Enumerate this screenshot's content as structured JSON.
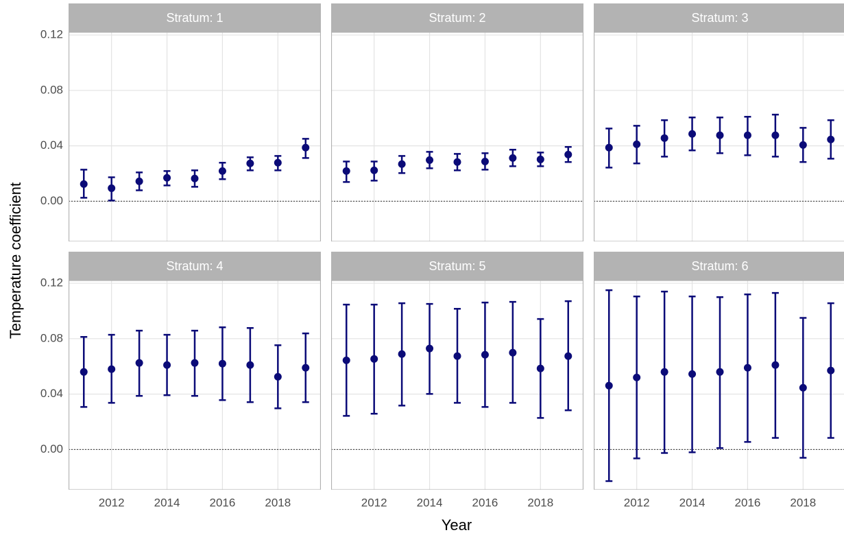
{
  "xlabel": "Year",
  "ylabel": "Temperature coefficient",
  "chart_data": [
    {
      "type": "errorbar",
      "title": "Stratum: 1",
      "color": "#0b0b78",
      "x": [
        2011,
        2012,
        2013,
        2014,
        2015,
        2016,
        2017,
        2018,
        2019
      ],
      "values": [
        0.0124,
        0.0094,
        0.0144,
        0.0169,
        0.0164,
        0.0218,
        0.0273,
        0.0278,
        0.0387
      ],
      "lower": [
        0.0025,
        0.0005,
        0.0079,
        0.0114,
        0.0104,
        0.0159,
        0.0223,
        0.0223,
        0.0312
      ],
      "upper": [
        0.0228,
        0.0173,
        0.0208,
        0.0218,
        0.0223,
        0.0278,
        0.0317,
        0.0327,
        0.0451
      ],
      "xlim": [
        2010.45,
        2019.55
      ],
      "ylim": [
        -0.029,
        0.122
      ],
      "xticks": [
        2012,
        2014,
        2016,
        2018
      ],
      "yticks": [
        {
          "value": 0,
          "label": "0.00"
        },
        0.04,
        0.08,
        0.12
      ],
      "hline": 0,
      "grid": true
    },
    {
      "type": "errorbar",
      "title": "Stratum: 2",
      "color": "#0b0b78",
      "x": [
        2011,
        2012,
        2013,
        2014,
        2015,
        2016,
        2017,
        2018,
        2019
      ],
      "values": [
        0.0218,
        0.0223,
        0.0268,
        0.0297,
        0.0283,
        0.0287,
        0.0312,
        0.0302,
        0.0337
      ],
      "lower": [
        0.0139,
        0.0149,
        0.0203,
        0.0238,
        0.0223,
        0.0228,
        0.0253,
        0.0253,
        0.0283
      ],
      "upper": [
        0.0287,
        0.0287,
        0.0327,
        0.0357,
        0.0342,
        0.0347,
        0.0372,
        0.0352,
        0.0392
      ],
      "xlim": [
        2010.45,
        2019.55
      ],
      "ylim": [
        -0.029,
        0.122
      ],
      "xticks": [
        2012,
        2014,
        2016,
        2018
      ],
      "yticks": [
        {
          "value": 0,
          "label": "0.00"
        },
        0.04,
        0.08,
        0.12
      ],
      "hline": 0,
      "grid": true
    },
    {
      "type": "errorbar",
      "title": "Stratum: 3",
      "color": "#0b0b78",
      "x": [
        2011,
        2012,
        2013,
        2014,
        2015,
        2016,
        2017,
        2018,
        2019
      ],
      "values": [
        0.0387,
        0.0411,
        0.0456,
        0.0486,
        0.0476,
        0.0476,
        0.0476,
        0.0406,
        0.0446
      ],
      "lower": [
        0.0243,
        0.0273,
        0.0322,
        0.0367,
        0.0347,
        0.0332,
        0.0322,
        0.0283,
        0.0307
      ],
      "upper": [
        0.0525,
        0.0545,
        0.0585,
        0.0605,
        0.0605,
        0.061,
        0.0625,
        0.053,
        0.0585
      ],
      "xlim": [
        2010.45,
        2019.55
      ],
      "ylim": [
        -0.029,
        0.122
      ],
      "xticks": [
        2012,
        2014,
        2016,
        2018
      ],
      "yticks": [
        {
          "value": 0,
          "label": "0.00"
        },
        0.04,
        0.08,
        0.12
      ],
      "hline": 0,
      "grid": true
    },
    {
      "type": "errorbar",
      "title": "Stratum: 4",
      "color": "#0b0b78",
      "x": [
        2011,
        2012,
        2013,
        2014,
        2015,
        2016,
        2017,
        2018,
        2019
      ],
      "values": [
        0.056,
        0.058,
        0.0625,
        0.061,
        0.0625,
        0.062,
        0.061,
        0.0525,
        0.059
      ],
      "lower": [
        0.0307,
        0.0337,
        0.0387,
        0.0392,
        0.0387,
        0.0357,
        0.0342,
        0.0297,
        0.0342
      ],
      "upper": [
        0.0813,
        0.0828,
        0.0858,
        0.0828,
        0.0858,
        0.0882,
        0.0877,
        0.0753,
        0.0838
      ],
      "xlim": [
        2010.45,
        2019.55
      ],
      "ylim": [
        -0.029,
        0.122
      ],
      "xticks": [
        2012,
        2014,
        2016,
        2018
      ],
      "yticks": [
        {
          "value": 0,
          "label": "0.00"
        },
        0.04,
        0.08,
        0.12
      ],
      "hline": 0,
      "grid": true
    },
    {
      "type": "errorbar",
      "title": "Stratum: 5",
      "color": "#0b0b78",
      "x": [
        2011,
        2012,
        2013,
        2014,
        2015,
        2016,
        2017,
        2018,
        2019
      ],
      "values": [
        0.0644,
        0.0654,
        0.0689,
        0.0729,
        0.0674,
        0.0684,
        0.0699,
        0.0585,
        0.0674
      ],
      "lower": [
        0.0243,
        0.0258,
        0.0317,
        0.0401,
        0.0337,
        0.0307,
        0.0337,
        0.0228,
        0.0283
      ],
      "upper": [
        0.1046,
        0.1046,
        0.1056,
        0.1051,
        0.1016,
        0.1061,
        0.1066,
        0.0942,
        0.1071
      ],
      "xlim": [
        2010.45,
        2019.55
      ],
      "ylim": [
        -0.029,
        0.122
      ],
      "xticks": [
        2012,
        2014,
        2016,
        2018
      ],
      "yticks": [
        {
          "value": 0,
          "label": "0.00"
        },
        0.04,
        0.08,
        0.12
      ],
      "hline": 0,
      "grid": true
    },
    {
      "type": "errorbar",
      "title": "Stratum: 6",
      "color": "#0b0b78",
      "x": [
        2011,
        2012,
        2013,
        2014,
        2015,
        2016,
        2017,
        2018,
        2019
      ],
      "values": [
        0.0461,
        0.052,
        0.056,
        0.0545,
        0.056,
        0.059,
        0.061,
        0.0446,
        0.057
      ],
      "lower": [
        -0.0228,
        -0.0064,
        -0.0025,
        -0.002,
        0.001,
        0.0055,
        0.0084,
        -0.006,
        0.0084
      ],
      "upper": [
        0.115,
        0.1105,
        0.114,
        0.1105,
        0.11,
        0.112,
        0.113,
        0.095,
        0.1056
      ],
      "xlim": [
        2010.45,
        2019.55
      ],
      "ylim": [
        -0.029,
        0.122
      ],
      "xticks": [
        2012,
        2014,
        2016,
        2018
      ],
      "yticks": [
        {
          "value": 0,
          "label": "0.00"
        },
        0.04,
        0.08,
        0.12
      ],
      "hline": 0,
      "grid": true
    }
  ]
}
